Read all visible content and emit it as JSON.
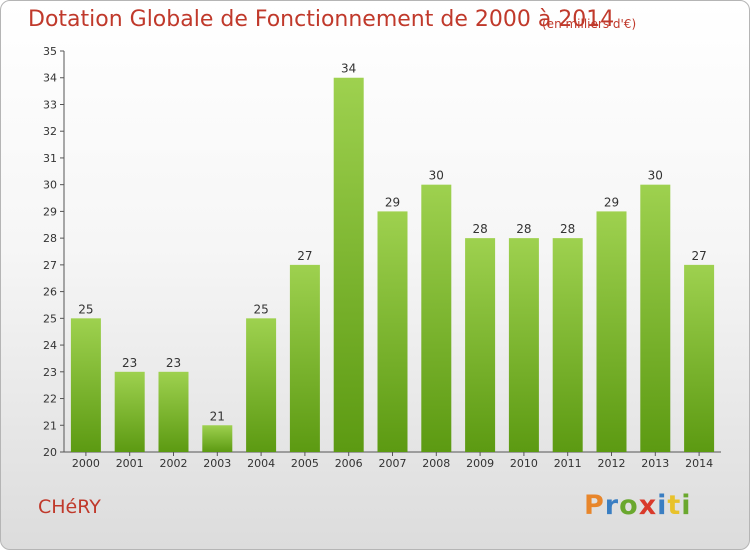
{
  "chart_data": {
    "type": "bar",
    "title": "Dotation Globale de Fonctionnement de 2000 à 2014",
    "subtitle": "(en milliers d'€)",
    "categories": [
      "2000",
      "2001",
      "2002",
      "2003",
      "2004",
      "2005",
      "2006",
      "2007",
      "2008",
      "2009",
      "2010",
      "2011",
      "2012",
      "2013",
      "2014"
    ],
    "values": [
      25,
      23,
      23,
      21,
      25,
      27,
      34,
      29,
      30,
      28,
      28,
      28,
      29,
      30,
      27
    ],
    "ylim": [
      20,
      35
    ],
    "yticks": [
      20,
      21,
      22,
      23,
      24,
      25,
      26,
      27,
      28,
      29,
      30,
      31,
      32,
      33,
      34,
      35
    ],
    "grid": false,
    "colors": {
      "bar_top": "#9ed14f",
      "bar_bottom": "#5c9a12",
      "text": "#c0392b"
    }
  },
  "footer": {
    "commune": "CHéRY",
    "logo": "Proxiti"
  },
  "logo_colors": [
    "#e8862b",
    "#3a7ec2",
    "#6aa82e",
    "#d93a2b",
    "#3a7ec2",
    "#e8c22b",
    "#6aa82e"
  ]
}
